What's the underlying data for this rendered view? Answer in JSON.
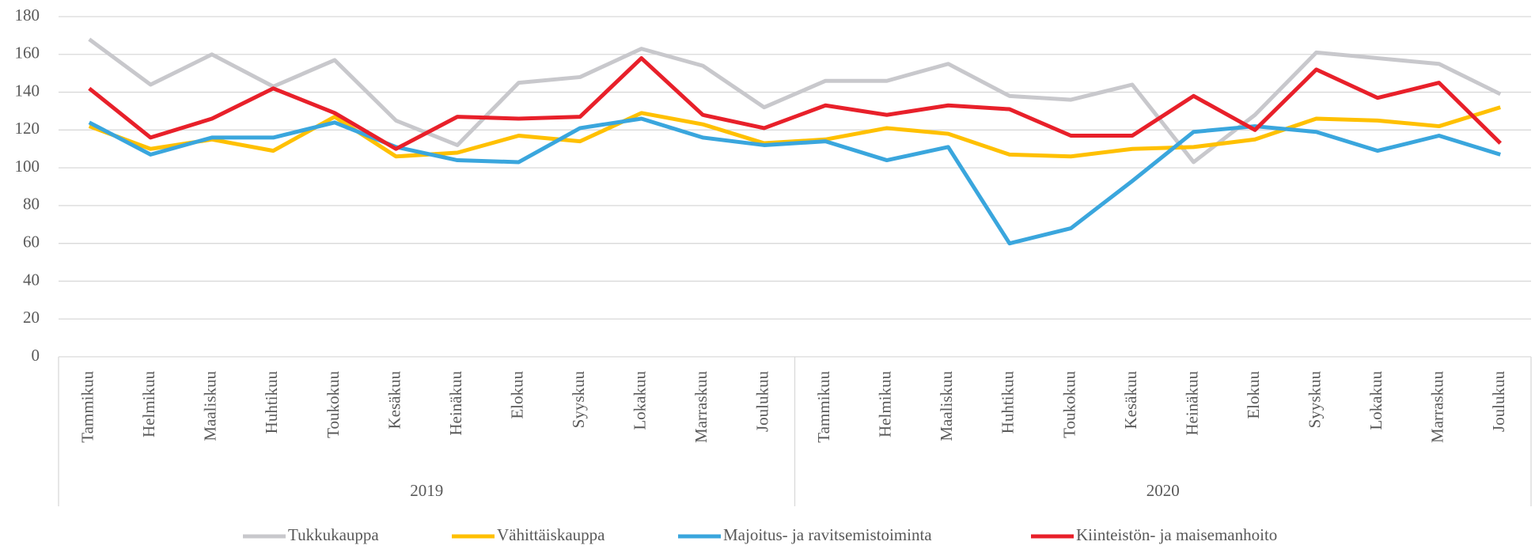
{
  "chart_data": {
    "type": "line",
    "categories": [
      "Tammikuu",
      "Helmikuu",
      "Maaliskuu",
      "Huhtikuu",
      "Toukokuu",
      "Kesäkuu",
      "Heinäkuu",
      "Elokuu",
      "Syyskuu",
      "Lokakuu",
      "Marraskuu",
      "Joulukuu",
      "Tammikuu",
      "Helmikuu",
      "Maaliskuu",
      "Huhtikuu",
      "Toukokuu",
      "Kesäkuu",
      "Heinäkuu",
      "Elokuu",
      "Syyskuu",
      "Lokakuu",
      "Marraskuu",
      "Joulukuu"
    ],
    "groups": [
      "2019",
      "2020"
    ],
    "series": [
      {
        "name": "Tukkukauppa",
        "color": "#c8c8cc",
        "values": [
          168,
          144,
          160,
          143,
          157,
          125,
          112,
          145,
          148,
          163,
          154,
          132,
          146,
          146,
          155,
          138,
          136,
          144,
          103,
          128,
          161,
          158,
          155,
          139
        ]
      },
      {
        "name": "Vähittäiskauppa",
        "color": "#ffc000",
        "values": [
          122,
          110,
          115,
          109,
          127,
          106,
          108,
          117,
          114,
          129,
          123,
          113,
          115,
          121,
          118,
          107,
          106,
          110,
          111,
          115,
          126,
          125,
          122,
          132
        ]
      },
      {
        "name": "Majoitus- ja ravitsemistoiminta",
        "color": "#3aa6dd",
        "values": [
          124,
          107,
          116,
          116,
          124,
          111,
          104,
          103,
          121,
          126,
          116,
          112,
          114,
          104,
          111,
          60,
          68,
          93,
          119,
          122,
          119,
          109,
          117,
          107
        ]
      },
      {
        "name": "Kiinteistön- ja maisemanhoito",
        "color": "#e8202a",
        "values": [
          142,
          116,
          126,
          142,
          129,
          110,
          127,
          126,
          127,
          158,
          128,
          121,
          133,
          128,
          133,
          131,
          117,
          117,
          138,
          120,
          152,
          137,
          145,
          113
        ]
      }
    ],
    "ylim": [
      0,
      180
    ],
    "yticks": [
      0,
      20,
      40,
      60,
      80,
      100,
      120,
      140,
      160,
      180
    ],
    "grid": true,
    "legend": "bottom"
  }
}
